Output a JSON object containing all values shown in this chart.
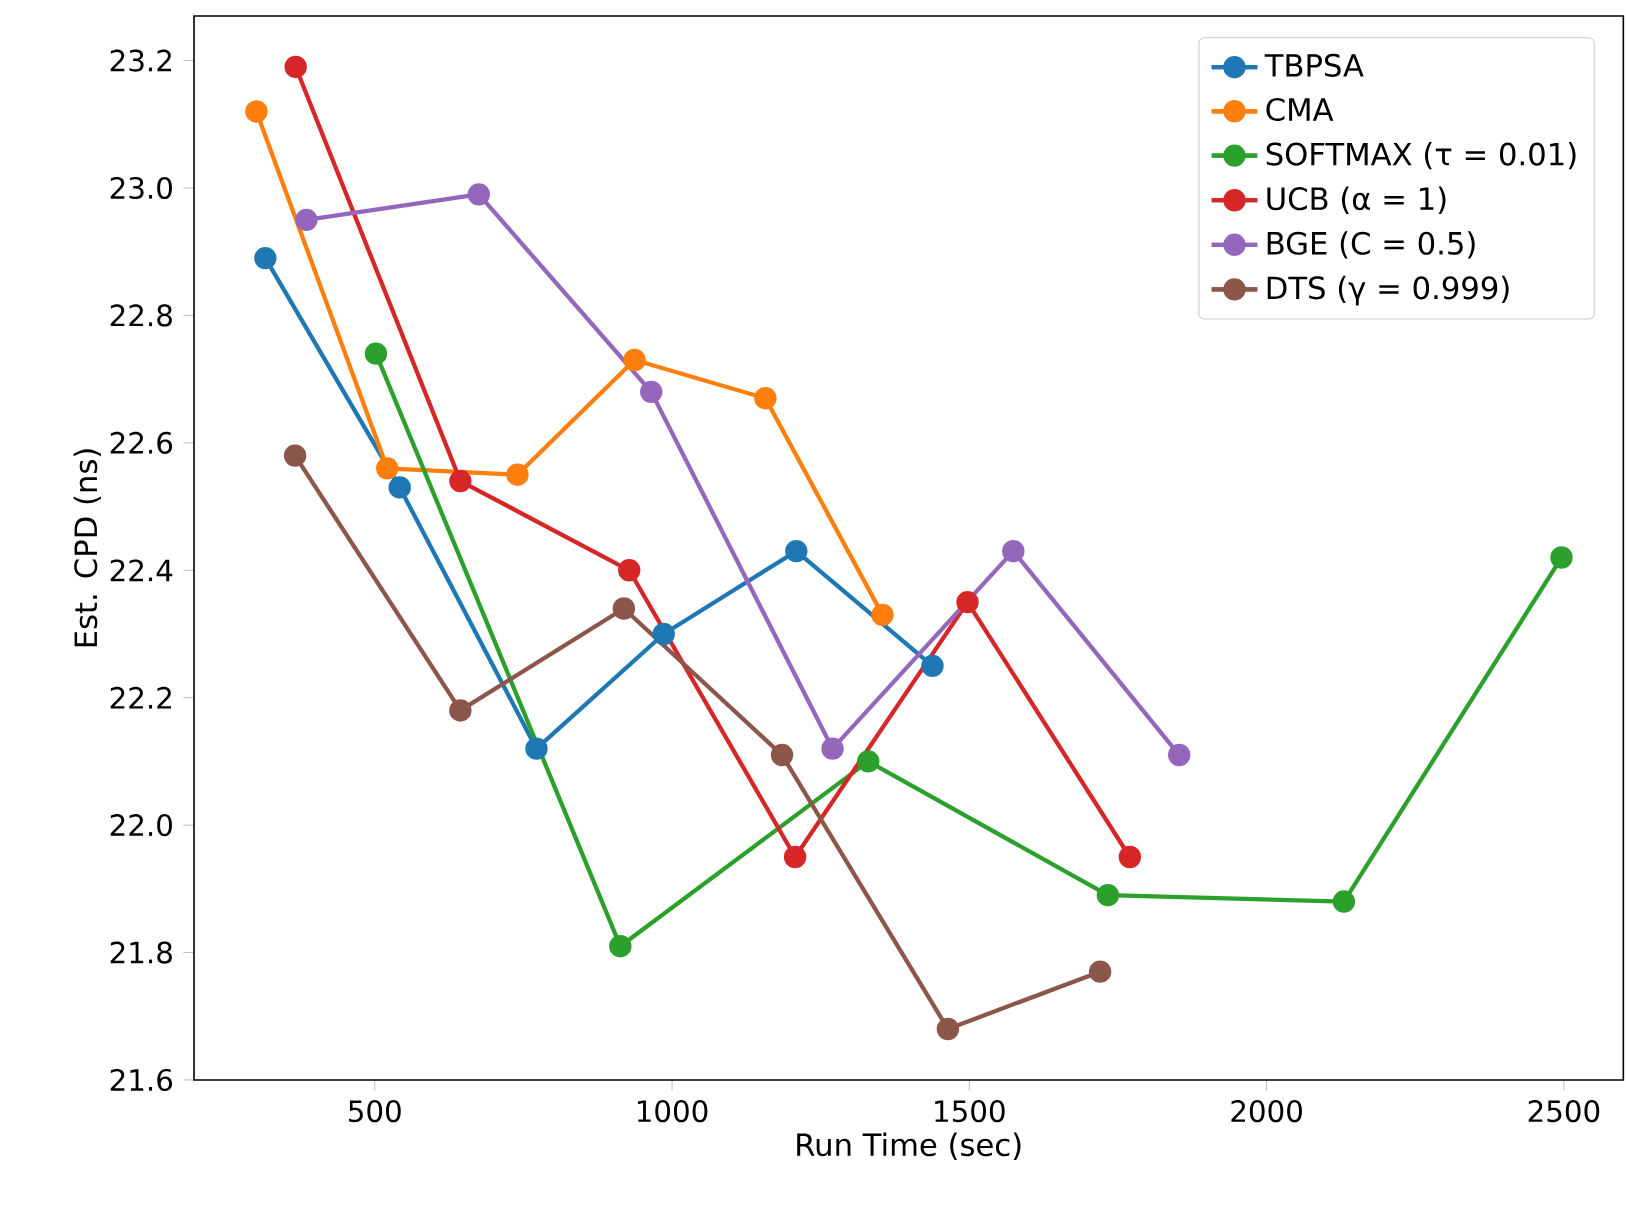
{
  "chart_data": {
    "type": "line",
    "xlabel": "Run Time (sec)",
    "ylabel": "Est. CPD (ns)",
    "xlim": [
      196,
      2600
    ],
    "ylim": [
      21.6,
      23.27
    ],
    "xticks": [
      500,
      1000,
      1500,
      2000,
      2500
    ],
    "yticks": [
      {
        "value": 21.6,
        "label": "21.6"
      },
      {
        "value": 21.8,
        "label": "21.8"
      },
      {
        "value": 22.0,
        "label": "22.0"
      },
      {
        "value": 22.2,
        "label": "22.2"
      },
      {
        "value": 22.4,
        "label": "22.4"
      },
      {
        "value": 22.6,
        "label": "22.6"
      },
      {
        "value": 22.8,
        "label": "22.8"
      },
      {
        "value": 23.0,
        "label": "23.0"
      },
      {
        "value": 23.2,
        "label": "23.2"
      }
    ],
    "grid": false,
    "legend": "top right",
    "marker": "circle",
    "line_style": "solid",
    "series": [
      {
        "name": "TBPSA",
        "color": "#1f77b4",
        "x": [
          316,
          542,
          772,
          986,
          1209,
          1438
        ],
        "values": [
          22.89,
          22.53,
          22.12,
          22.3,
          22.43,
          22.25
        ]
      },
      {
        "name": "CMA",
        "color": "#ff7f0e",
        "x": [
          301,
          521,
          740,
          937,
          1157,
          1354
        ],
        "values": [
          23.12,
          22.56,
          22.55,
          22.73,
          22.67,
          22.33
        ]
      },
      {
        "name": "SOFTMAX (τ = 0.01)",
        "color": "#2ca02c",
        "x": [
          502,
          913,
          1330,
          1733,
          2130,
          2496
        ],
        "values": [
          22.74,
          21.81,
          22.1,
          21.89,
          21.88,
          22.42
        ]
      },
      {
        "name": "UCB (α = 1)",
        "color": "#d62728",
        "x": [
          367,
          644,
          928,
          1207,
          1497,
          1770
        ],
        "values": [
          23.19,
          22.54,
          22.4,
          21.95,
          22.35,
          21.95
        ]
      },
      {
        "name": "BGE (C = 0.5)",
        "color": "#9467bd",
        "x": [
          385,
          675,
          965,
          1270,
          1574,
          1853
        ],
        "values": [
          22.95,
          22.99,
          22.68,
          22.12,
          22.43,
          22.11
        ]
      },
      {
        "name": "DTS (γ = 0.999)",
        "color": "#8c564b",
        "x": [
          366,
          644,
          919,
          1185,
          1464,
          1720
        ],
        "values": [
          22.58,
          22.18,
          22.34,
          22.11,
          21.68,
          21.77
        ]
      }
    ]
  }
}
